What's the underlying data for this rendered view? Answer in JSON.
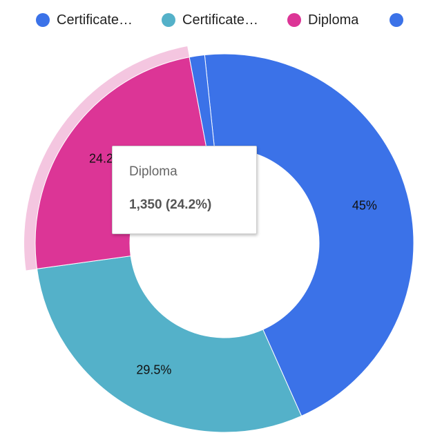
{
  "chart_data": {
    "type": "pie",
    "donut": true,
    "legend_position": "top",
    "categories": [
      "Certificate…",
      "Certificate…",
      "Diploma",
      ""
    ],
    "values": [
      45,
      29.5,
      24.2,
      1.3
    ],
    "slice_labels": [
      "45%",
      "29.5%",
      "24.2%",
      ""
    ],
    "colors": [
      "#3b72e8",
      "#54b1c9",
      "#dc3596",
      "#3b72e8"
    ],
    "highlighted_index": 2,
    "highlight_color": "#f4c6e0"
  },
  "tooltip": {
    "title": "Diploma",
    "value": "1,350 (24.2%)"
  }
}
